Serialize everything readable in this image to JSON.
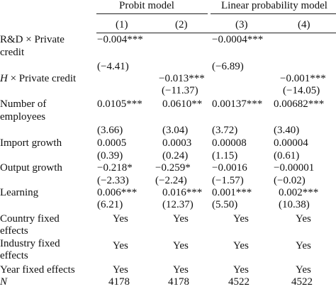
{
  "groups": {
    "probit": "Probit model",
    "lpm": "Linear probability model"
  },
  "columns": [
    "(1)",
    "(2)",
    "(3)",
    "(4)"
  ],
  "rows": [
    {
      "label": [
        "R&D × Private",
        "credit"
      ],
      "values": [
        "−0.004***",
        "",
        "−0.0004***",
        ""
      ],
      "tstats": [
        "(−4.41)",
        "",
        "(−6.89)",
        ""
      ]
    },
    {
      "label_italic": "H",
      "label_rest": " × Private credit",
      "values": [
        "",
        "−0.013***",
        "",
        "−0.001***"
      ],
      "tstats": [
        "",
        "(−11.37)",
        "",
        "(−14.05)"
      ]
    },
    {
      "label": [
        "Number of",
        "employees"
      ],
      "values": [
        "0.0105***",
        "0.0610**",
        "0.00137***",
        "0.00682***"
      ],
      "tstats": [
        "(3.66)",
        "(3.04)",
        "(3.72)",
        "(3.40)"
      ]
    },
    {
      "label": [
        "Import growth"
      ],
      "values": [
        "0.0005",
        "0.0003",
        "0.00008",
        "0.00004"
      ],
      "tstats": [
        "(0.39)",
        "(0.24)",
        "(1.15)",
        "(0.61)"
      ]
    },
    {
      "label": [
        "Output growth"
      ],
      "values": [
        "−0.218*",
        "−0.259*",
        "−0.0016",
        "−0.00001"
      ],
      "tstats": [
        "(−2.33)",
        "(−2.24)",
        "(−1.57)",
        "(−0.02)"
      ]
    },
    {
      "label": [
        "Learning"
      ],
      "values": [
        "0.006***",
        "0.016***",
        "0.001***",
        "0.002***"
      ],
      "tstats": [
        "(6.21)",
        "(12.37)",
        "(5.50)",
        "(10.38)"
      ]
    },
    {
      "label": [
        "Country fixed",
        "effects"
      ],
      "values": [
        "Yes",
        "Yes",
        "Yes",
        "Yes"
      ]
    },
    {
      "label": [
        "Industry fixed",
        "effects"
      ],
      "values": [
        "Yes",
        "Yes",
        "Yes",
        "Yes"
      ]
    },
    {
      "label": [
        "Year fixed effects"
      ],
      "values": [
        "Yes",
        "Yes",
        "Yes",
        "Yes"
      ]
    },
    {
      "label_italic": "N",
      "values": [
        "4178",
        "4178",
        "4522",
        "4522"
      ]
    }
  ]
}
